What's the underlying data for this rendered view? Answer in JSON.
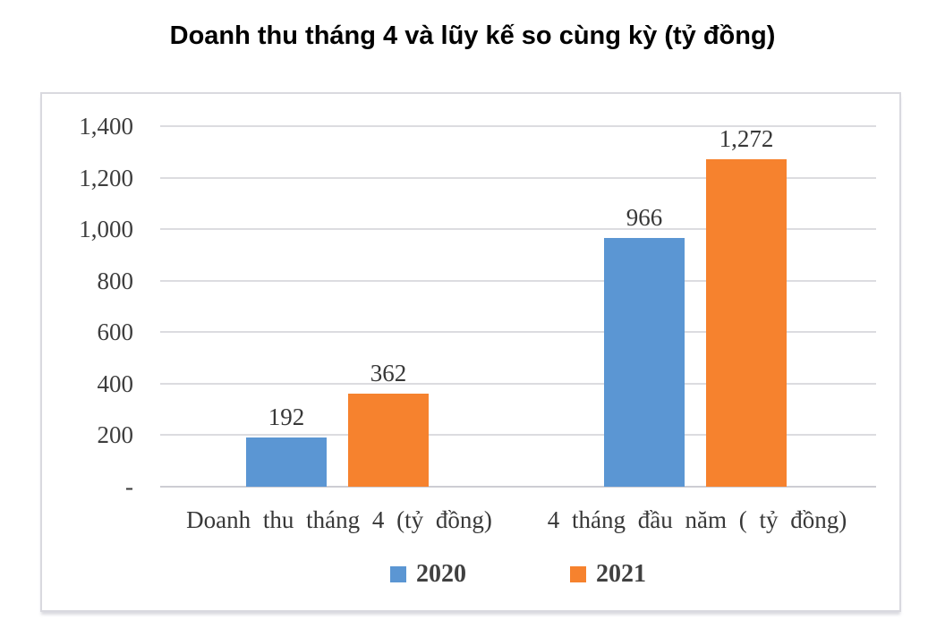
{
  "chart_data": {
    "type": "bar",
    "title": "Doanh thu tháng 4 và lũy kế so cùng kỳ (tỷ đồng)",
    "categories": [
      "Doanh thu tháng 4 (tỷ đồng)",
      "4 tháng đầu năm ( tỷ đồng)"
    ],
    "series": [
      {
        "name": "2020",
        "color": "#5b96d3",
        "values": [
          192,
          966
        ],
        "labels": [
          "192",
          "966"
        ]
      },
      {
        "name": "2021",
        "color": "#f6822e",
        "values": [
          362,
          1272
        ],
        "labels": [
          "362",
          "1,272"
        ]
      }
    ],
    "y_ticks": [
      "1,400",
      "1,200",
      "1,000",
      "800",
      "600",
      "400",
      "200",
      "-"
    ],
    "y_tick_values": [
      1400,
      1200,
      1000,
      800,
      600,
      400,
      200,
      0
    ],
    "ylim": [
      0,
      1400
    ],
    "grid": true,
    "legend_position": "bottom",
    "xlabel": "",
    "ylabel": ""
  }
}
